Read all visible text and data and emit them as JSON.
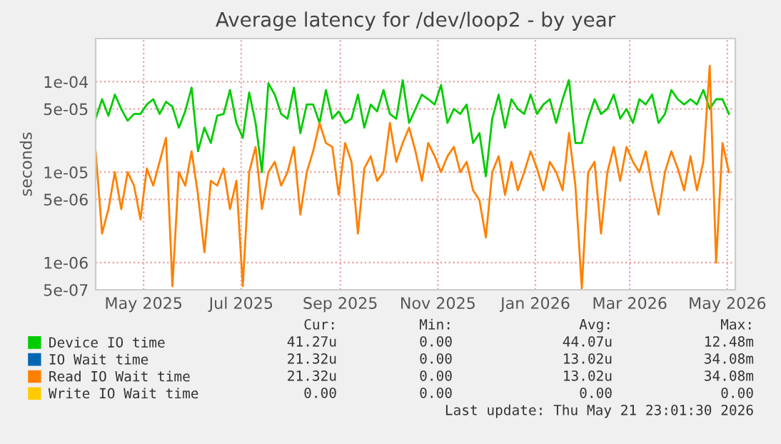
{
  "chart_data": {
    "type": "line",
    "title": "Average latency for /dev/loop2 - by year",
    "ylabel": "seconds",
    "log": "y",
    "grid": true,
    "legend": "bottom",
    "marker": "none",
    "line_style": "solid",
    "ylim": [
      5e-07,
      0.0003
    ],
    "yticks": [
      {
        "value": 5e-07,
        "label": "5e-07"
      },
      {
        "value": 1e-06,
        "label": "1e-06"
      },
      {
        "value": 5e-06,
        "label": "5e-06"
      },
      {
        "value": 1e-05,
        "label": "1e-05"
      },
      {
        "value": 5e-05,
        "label": "5e-05"
      },
      {
        "value": 0.0001,
        "label": "1e-04"
      }
    ],
    "xlim": [
      "2025-04-16",
      "2026-05-21"
    ],
    "xticks": [
      {
        "value": "2025-05-16",
        "label": "May 2025"
      },
      {
        "value": "2025-07-16",
        "label": "Jul 2025"
      },
      {
        "value": "2025-09-16",
        "label": "Sep 2025"
      },
      {
        "value": "2025-11-16",
        "label": "Nov 2025"
      },
      {
        "value": "2026-01-16",
        "label": "Jan 2026"
      },
      {
        "value": "2026-03-16",
        "label": "Mar 2026"
      },
      {
        "value": "2026-05-16",
        "label": "May 2026"
      }
    ],
    "x": [
      "2025-04-16",
      "2025-04-20",
      "2025-04-24",
      "2025-04-28",
      "2025-05-02",
      "2025-05-06",
      "2025-05-10",
      "2025-05-14",
      "2025-05-18",
      "2025-05-22",
      "2025-05-26",
      "2025-05-30",
      "2025-06-03",
      "2025-06-07",
      "2025-06-11",
      "2025-06-15",
      "2025-06-19",
      "2025-06-23",
      "2025-06-27",
      "2025-07-01",
      "2025-07-05",
      "2025-07-09",
      "2025-07-13",
      "2025-07-17",
      "2025-07-21",
      "2025-07-25",
      "2025-07-29",
      "2025-08-02",
      "2025-08-06",
      "2025-08-10",
      "2025-08-14",
      "2025-08-18",
      "2025-08-22",
      "2025-08-26",
      "2025-08-30",
      "2025-09-03",
      "2025-09-07",
      "2025-09-11",
      "2025-09-15",
      "2025-09-19",
      "2025-09-23",
      "2025-09-27",
      "2025-10-01",
      "2025-10-05",
      "2025-10-09",
      "2025-10-13",
      "2025-10-17",
      "2025-10-21",
      "2025-10-25",
      "2025-10-29",
      "2025-11-02",
      "2025-11-06",
      "2025-11-10",
      "2025-11-14",
      "2025-11-18",
      "2025-11-22",
      "2025-11-26",
      "2025-11-30",
      "2025-12-04",
      "2025-12-08",
      "2025-12-12",
      "2025-12-16",
      "2025-12-20",
      "2025-12-24",
      "2025-12-28",
      "2026-01-01",
      "2026-01-05",
      "2026-01-09",
      "2026-01-13",
      "2026-01-17",
      "2026-01-21",
      "2026-01-25",
      "2026-01-29",
      "2026-02-02",
      "2026-02-06",
      "2026-02-10",
      "2026-02-14",
      "2026-02-18",
      "2026-02-22",
      "2026-02-26",
      "2026-03-02",
      "2026-03-06",
      "2026-03-10",
      "2026-03-14",
      "2026-03-18",
      "2026-03-22",
      "2026-03-26",
      "2026-03-30",
      "2026-04-03",
      "2026-04-07",
      "2026-04-11",
      "2026-04-15",
      "2026-04-19",
      "2026-04-23",
      "2026-04-27",
      "2026-05-01",
      "2026-05-05",
      "2026-05-09",
      "2026-05-13",
      "2026-05-17"
    ],
    "series": [
      {
        "name": "Device IO time",
        "color": "#00cc00",
        "values": [
          3.9e-05,
          6.4e-05,
          4.2e-05,
          7.2e-05,
          5e-05,
          3.7e-05,
          4.4e-05,
          4.4e-05,
          5.6e-05,
          6.4e-05,
          4.4e-05,
          6e-05,
          5.3e-05,
          3.1e-05,
          4.7e-05,
          8.6e-05,
          1.7e-05,
          3.1e-05,
          2.1e-05,
          4.2e-05,
          4.4e-05,
          8.1e-05,
          3.5e-05,
          2.4e-05,
          7.6e-05,
          3.5e-05,
          1e-05,
          9.6e-05,
          7.2e-05,
          4.4e-05,
          3.9e-05,
          8.6e-05,
          2.7e-05,
          5.6e-05,
          5.6e-05,
          3.5e-05,
          8.1e-05,
          3.9e-05,
          4.7e-05,
          3.5e-05,
          3.9e-05,
          7.2e-05,
          3.1e-05,
          5.6e-05,
          4.7e-05,
          8.1e-05,
          4.4e-05,
          3.9e-05,
          0.000104,
          3.5e-05,
          5e-05,
          7.2e-05,
          6.4e-05,
          5.6e-05,
          9.2e-05,
          3.5e-05,
          5e-05,
          4.4e-05,
          5.6e-05,
          2.1e-05,
          2.7e-05,
          9e-06,
          3.9e-05,
          7.2e-05,
          3.1e-05,
          6.4e-05,
          5e-05,
          4.4e-05,
          7.2e-05,
          4.4e-05,
          5.6e-05,
          6.4e-05,
          3.5e-05,
          6.4e-05,
          0.000104,
          2.1e-05,
          2.1e-05,
          3.9e-05,
          6.4e-05,
          4.4e-05,
          5e-05,
          7.2e-05,
          3.9e-05,
          5e-05,
          3.5e-05,
          6.4e-05,
          5.6e-05,
          7.2e-05,
          3.5e-05,
          4.4e-05,
          8.1e-05,
          6.4e-05,
          5.6e-05,
          6.4e-05,
          5.6e-05,
          8.1e-05,
          5e-05,
          6.4e-05,
          6.4e-05,
          4.4e-05
        ]
      },
      {
        "name": "IO Wait time",
        "color": "#0066b3",
        "values": [
          null,
          null,
          null,
          null,
          null,
          null,
          null,
          null,
          null,
          null,
          null,
          null,
          null,
          null,
          null,
          null,
          null,
          null,
          null,
          null,
          null,
          null,
          null,
          null,
          null,
          null,
          null,
          null,
          null,
          null,
          null,
          null,
          null,
          null,
          null,
          null,
          null,
          null,
          null,
          null,
          null,
          null,
          null,
          null,
          null,
          null,
          null,
          null,
          null,
          null,
          null,
          null,
          null,
          null,
          null,
          null,
          null,
          null,
          null,
          null,
          null,
          null,
          null,
          null,
          null,
          null,
          null,
          null,
          null,
          null,
          null,
          null,
          null,
          null,
          null,
          null,
          null,
          null,
          null,
          null,
          null,
          null,
          null,
          null,
          null,
          null,
          null,
          null,
          null,
          null,
          null,
          null,
          null,
          null,
          null,
          null,
          null,
          null,
          null,
          null
        ]
      },
      {
        "name": "Read IO Wait time",
        "color": "#ff8000",
        "values": [
          1.7e-05,
          2.1e-06,
          3.9e-06,
          1e-05,
          3.9e-06,
          1e-05,
          7.1e-06,
          3e-06,
          1.1e-05,
          7.1e-06,
          1.3e-05,
          2.4e-05,
          5.5e-07,
          1e-05,
          7.1e-06,
          1.7e-05,
          5.6e-06,
          1.3e-06,
          8e-06,
          7.1e-06,
          1.1e-05,
          3.9e-06,
          8e-06,
          5.5e-07,
          1e-05,
          1.9e-05,
          3.9e-06,
          1e-05,
          1.3e-05,
          7.1e-06,
          1e-05,
          1.9e-05,
          3.4e-06,
          1e-05,
          1.7e-05,
          3.5e-05,
          2.1e-05,
          1.9e-05,
          5.6e-06,
          2.1e-05,
          1.3e-05,
          2.1e-06,
          1.1e-05,
          1.5e-05,
          8e-06,
          1e-05,
          3.5e-05,
          1.3e-05,
          2.1e-05,
          3.1e-05,
          1.7e-05,
          8e-06,
          2.1e-05,
          1.5e-05,
          1e-05,
          1.5e-05,
          1.9e-05,
          1e-05,
          1.3e-05,
          6.3e-06,
          4.9e-06,
          1.9e-06,
          1e-05,
          1.5e-05,
          5.6e-06,
          1.3e-05,
          6.3e-06,
          1e-05,
          1.7e-05,
          1.1e-05,
          6.3e-06,
          1.3e-05,
          1e-05,
          6.3e-06,
          2.7e-05,
          7.1e-06,
          5.2e-07,
          1e-05,
          1.3e-05,
          2.1e-06,
          1e-05,
          1.9e-05,
          8e-06,
          1.9e-05,
          1.3e-05,
          1e-05,
          1.7e-05,
          7.1e-06,
          3.4e-06,
          1e-05,
          1.7e-05,
          1.1e-05,
          6.3e-06,
          1.5e-05,
          6.3e-06,
          1.3e-05,
          0.00015,
          1e-06,
          2.1e-05,
          1e-05
        ]
      },
      {
        "name": "Write IO Wait time",
        "color": "#ffcc00",
        "values": [
          null,
          null,
          null,
          null,
          null,
          null,
          null,
          null,
          null,
          null,
          null,
          null,
          null,
          null,
          null,
          null,
          null,
          null,
          null,
          null,
          null,
          null,
          null,
          null,
          null,
          null,
          null,
          null,
          null,
          null,
          null,
          null,
          null,
          null,
          null,
          null,
          null,
          null,
          null,
          null,
          null,
          null,
          null,
          null,
          null,
          null,
          null,
          null,
          null,
          null,
          null,
          null,
          null,
          null,
          null,
          null,
          null,
          null,
          null,
          null,
          null,
          null,
          null,
          null,
          null,
          null,
          null,
          null,
          null,
          null,
          null,
          null,
          null,
          null,
          null,
          null,
          null,
          null,
          null,
          null,
          null,
          null,
          null,
          null,
          null,
          null,
          null,
          null,
          null,
          null,
          null,
          null,
          null,
          null,
          null,
          null,
          null,
          null,
          null,
          null
        ]
      }
    ],
    "annotations": [
      "Cur:",
      "Min:",
      "Avg:",
      "Max:",
      "41.27u",
      "0.00",
      "44.07u",
      "12.48m",
      "21.32u",
      "0.00",
      "13.02u",
      "34.08m",
      "21.32u",
      "0.00",
      "13.02u",
      "34.08m",
      "0.00",
      "0.00",
      "0.00",
      "0.00",
      "Last update: Thu May 21 23:01:30 2026"
    ]
  }
}
